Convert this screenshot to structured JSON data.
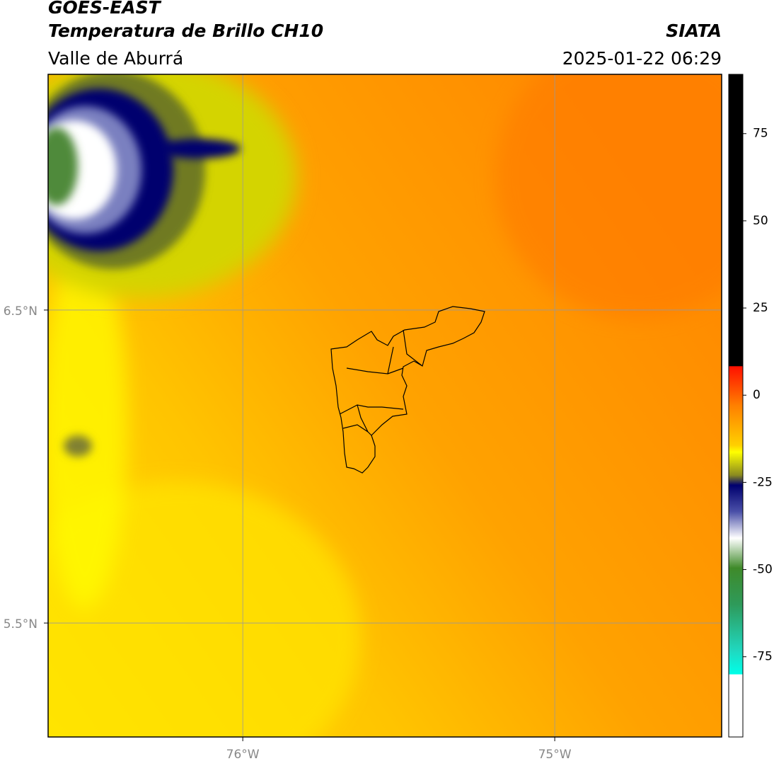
{
  "header": {
    "title": "GOES-EAST",
    "subtitle": "Temperatura de Brillo CH10",
    "region": "Valle de Aburrá",
    "source": "SIATA",
    "timestamp": "2025-01-22 06:29"
  },
  "map": {
    "xlim": [
      -76.624,
      -74.465
    ],
    "ylim": [
      5.136,
      7.253
    ],
    "xticks": [
      {
        "value": -76,
        "label": "76°W"
      },
      {
        "value": -75,
        "label": "75°W"
      }
    ],
    "yticks": [
      {
        "value": 6.5,
        "label": "6.5°N"
      },
      {
        "value": 5.5,
        "label": "5.5°N"
      }
    ],
    "grid": true
  },
  "colorbar": {
    "lim": [
      -98,
      92
    ],
    "ticks": [
      75,
      50,
      25,
      0,
      -25,
      -50,
      -75
    ]
  }
}
